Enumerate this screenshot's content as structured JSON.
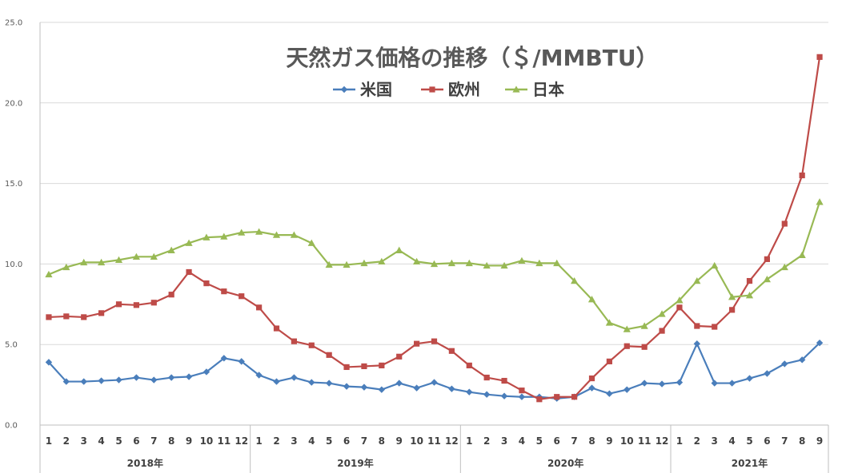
{
  "chart_data": {
    "type": "line",
    "title": "天然ガス価格の推移（＄/MMBTU）",
    "ylim": [
      0,
      25
    ],
    "yticks": [
      "0.0",
      "5.0",
      "10.0",
      "15.0",
      "20.0",
      "25.0"
    ],
    "grid": "horizontal",
    "legend_position": "top-center",
    "years": [
      "2018年",
      "2019年",
      "2020年",
      "2021年"
    ],
    "months": [
      "1",
      "2",
      "3",
      "4",
      "5",
      "6",
      "7",
      "8",
      "9",
      "10",
      "11",
      "12",
      "1",
      "2",
      "3",
      "4",
      "5",
      "6",
      "7",
      "8",
      "9",
      "10",
      "11",
      "12",
      "1",
      "2",
      "3",
      "4",
      "5",
      "6",
      "7",
      "8",
      "9",
      "10",
      "11",
      "12",
      "1",
      "2",
      "3",
      "4",
      "5",
      "6",
      "7",
      "8",
      "9"
    ],
    "series": [
      {
        "name": "米国",
        "color": "#4a7ebb",
        "marker": "diamond",
        "values": [
          3.9,
          2.7,
          2.7,
          2.75,
          2.8,
          2.95,
          2.8,
          2.95,
          3.0,
          3.3,
          4.15,
          3.95,
          3.1,
          2.7,
          2.95,
          2.65,
          2.6,
          2.4,
          2.35,
          2.2,
          2.6,
          2.3,
          2.65,
          2.25,
          2.05,
          1.9,
          1.8,
          1.75,
          1.75,
          1.65,
          1.75,
          2.3,
          1.95,
          2.2,
          2.6,
          2.55,
          2.65,
          5.05,
          2.6,
          2.6,
          2.9,
          3.2,
          3.8,
          4.05,
          5.1
        ]
      },
      {
        "name": "欧州",
        "color": "#be4b48",
        "marker": "square",
        "values": [
          6.7,
          6.75,
          6.7,
          6.95,
          7.5,
          7.45,
          7.6,
          8.1,
          9.5,
          8.8,
          8.3,
          8.0,
          7.3,
          6.0,
          5.2,
          4.95,
          4.35,
          3.6,
          3.65,
          3.7,
          4.25,
          5.05,
          5.2,
          4.6,
          3.7,
          2.95,
          2.75,
          2.15,
          1.6,
          1.75,
          1.75,
          2.9,
          3.95,
          4.9,
          4.85,
          5.85,
          7.3,
          6.15,
          6.1,
          7.15,
          8.95,
          10.3,
          12.5,
          15.5,
          22.85
        ]
      },
      {
        "name": "日本",
        "color": "#98b954",
        "marker": "triangle",
        "values": [
          9.35,
          9.8,
          10.1,
          10.1,
          10.25,
          10.45,
          10.45,
          10.85,
          11.3,
          11.65,
          11.7,
          11.95,
          12.0,
          11.8,
          11.8,
          11.3,
          9.95,
          9.95,
          10.05,
          10.15,
          10.85,
          10.15,
          10.0,
          10.05,
          10.05,
          9.9,
          9.9,
          10.2,
          10.05,
          10.05,
          8.95,
          7.8,
          6.35,
          5.95,
          6.15,
          6.9,
          7.75,
          8.95,
          9.9,
          7.95,
          8.05,
          9.05,
          9.8,
          10.55,
          13.85
        ]
      }
    ]
  }
}
